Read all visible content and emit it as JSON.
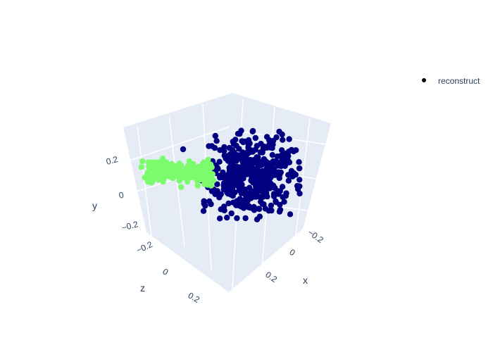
{
  "chart_data": {
    "type": "scatter",
    "is_3d": true,
    "axes": {
      "x": {
        "label": "x",
        "ticks": [
          "−0.2",
          "0",
          "0.2"
        ]
      },
      "y": {
        "label": "y",
        "ticks": [
          "−0.2",
          "0",
          "0.2"
        ]
      },
      "z": {
        "label": "z",
        "ticks": [
          "−0.2",
          "0",
          "0.2"
        ]
      }
    },
    "legend": {
      "position": "top-right",
      "entries": [
        {
          "name": "reconstruct",
          "marker_color": "#000000"
        }
      ]
    },
    "series": [
      {
        "name": "reconstruct",
        "color": "#000080",
        "approx_center": {
          "x": 0.05,
          "y": 0.02,
          "z": -0.02
        },
        "approx_point_count": 500
      },
      {
        "name": "reconstruct",
        "color": "#7cfc6c",
        "approx_center": {
          "x": -0.1,
          "y": 0.15,
          "z": -0.2
        },
        "approx_point_count": 250
      }
    ],
    "background_color": "#e5ecf6",
    "grid": true
  }
}
